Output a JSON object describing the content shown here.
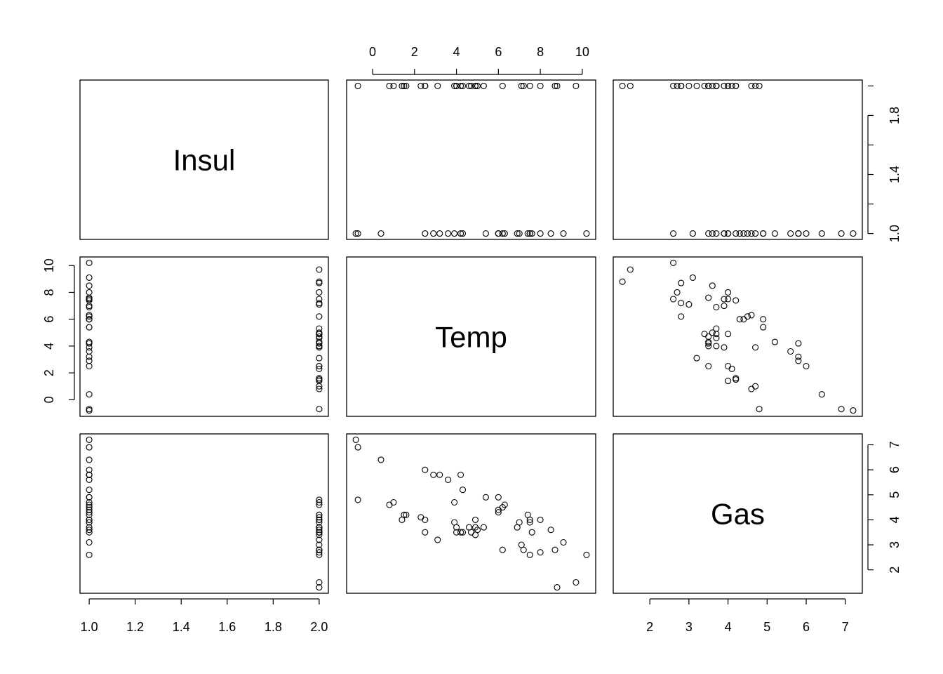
{
  "chart_data": {
    "type": "scatter-matrix",
    "variables": [
      "Insul",
      "Temp",
      "Gas"
    ],
    "ranges": {
      "Insul": [
        1.0,
        2.0
      ],
      "Temp": [
        -0.8,
        10.2
      ],
      "Gas": [
        1.3,
        7.2
      ]
    },
    "axis_ticks": {
      "Insul": [
        "1.0",
        "1.2",
        "1.4",
        "1.6",
        "1.8",
        "2.0"
      ],
      "Temp": [
        "0",
        "2",
        "4",
        "6",
        "8",
        "10"
      ],
      "Gas": [
        "2",
        "3",
        "4",
        "5",
        "6",
        "7"
      ]
    },
    "axis_ticks_right_insul": [
      "1.0",
      "1.4",
      "1.8"
    ],
    "grid": false,
    "point_style": "open-circle",
    "observations": [
      {
        "Insul": 1,
        "Temp": -0.8,
        "Gas": 7.2
      },
      {
        "Insul": 1,
        "Temp": -0.7,
        "Gas": 6.9
      },
      {
        "Insul": 1,
        "Temp": 0.4,
        "Gas": 6.4
      },
      {
        "Insul": 1,
        "Temp": 2.5,
        "Gas": 6.0
      },
      {
        "Insul": 1,
        "Temp": 2.9,
        "Gas": 5.8
      },
      {
        "Insul": 1,
        "Temp": 3.2,
        "Gas": 5.8
      },
      {
        "Insul": 1,
        "Temp": 3.6,
        "Gas": 5.6
      },
      {
        "Insul": 1,
        "Temp": 3.9,
        "Gas": 4.7
      },
      {
        "Insul": 1,
        "Temp": 4.2,
        "Gas": 5.8
      },
      {
        "Insul": 1,
        "Temp": 4.3,
        "Gas": 5.2
      },
      {
        "Insul": 1,
        "Temp": 5.4,
        "Gas": 4.9
      },
      {
        "Insul": 1,
        "Temp": 6.0,
        "Gas": 4.9
      },
      {
        "Insul": 1,
        "Temp": 6.0,
        "Gas": 4.3
      },
      {
        "Insul": 1,
        "Temp": 6.0,
        "Gas": 4.4
      },
      {
        "Insul": 1,
        "Temp": 6.2,
        "Gas": 4.5
      },
      {
        "Insul": 1,
        "Temp": 6.3,
        "Gas": 4.6
      },
      {
        "Insul": 1,
        "Temp": 6.9,
        "Gas": 3.7
      },
      {
        "Insul": 1,
        "Temp": 7.0,
        "Gas": 3.9
      },
      {
        "Insul": 1,
        "Temp": 7.4,
        "Gas": 4.2
      },
      {
        "Insul": 1,
        "Temp": 7.5,
        "Gas": 4.0
      },
      {
        "Insul": 1,
        "Temp": 7.5,
        "Gas": 3.9
      },
      {
        "Insul": 1,
        "Temp": 7.6,
        "Gas": 3.5
      },
      {
        "Insul": 1,
        "Temp": 8.0,
        "Gas": 4.0
      },
      {
        "Insul": 1,
        "Temp": 8.5,
        "Gas": 3.6
      },
      {
        "Insul": 1,
        "Temp": 9.1,
        "Gas": 3.1
      },
      {
        "Insul": 1,
        "Temp": 10.2,
        "Gas": 2.6
      },
      {
        "Insul": 2,
        "Temp": -0.7,
        "Gas": 4.8
      },
      {
        "Insul": 2,
        "Temp": 0.8,
        "Gas": 4.6
      },
      {
        "Insul": 2,
        "Temp": 1.0,
        "Gas": 4.7
      },
      {
        "Insul": 2,
        "Temp": 1.4,
        "Gas": 4.0
      },
      {
        "Insul": 2,
        "Temp": 1.5,
        "Gas": 4.2
      },
      {
        "Insul": 2,
        "Temp": 1.6,
        "Gas": 4.2
      },
      {
        "Insul": 2,
        "Temp": 2.3,
        "Gas": 4.1
      },
      {
        "Insul": 2,
        "Temp": 2.5,
        "Gas": 4.0
      },
      {
        "Insul": 2,
        "Temp": 2.5,
        "Gas": 3.5
      },
      {
        "Insul": 2,
        "Temp": 3.1,
        "Gas": 3.2
      },
      {
        "Insul": 2,
        "Temp": 3.9,
        "Gas": 3.9
      },
      {
        "Insul": 2,
        "Temp": 4.0,
        "Gas": 3.5
      },
      {
        "Insul": 2,
        "Temp": 4.0,
        "Gas": 3.7
      },
      {
        "Insul": 2,
        "Temp": 4.2,
        "Gas": 3.5
      },
      {
        "Insul": 2,
        "Temp": 4.3,
        "Gas": 3.5
      },
      {
        "Insul": 2,
        "Temp": 4.6,
        "Gas": 3.7
      },
      {
        "Insul": 2,
        "Temp": 4.7,
        "Gas": 3.5
      },
      {
        "Insul": 2,
        "Temp": 4.9,
        "Gas": 3.4
      },
      {
        "Insul": 2,
        "Temp": 4.9,
        "Gas": 3.7
      },
      {
        "Insul": 2,
        "Temp": 4.9,
        "Gas": 4.0
      },
      {
        "Insul": 2,
        "Temp": 5.0,
        "Gas": 3.6
      },
      {
        "Insul": 2,
        "Temp": 5.3,
        "Gas": 3.7
      },
      {
        "Insul": 2,
        "Temp": 6.2,
        "Gas": 2.8
      },
      {
        "Insul": 2,
        "Temp": 7.1,
        "Gas": 3.0
      },
      {
        "Insul": 2,
        "Temp": 7.2,
        "Gas": 2.8
      },
      {
        "Insul": 2,
        "Temp": 7.5,
        "Gas": 2.6
      },
      {
        "Insul": 2,
        "Temp": 8.0,
        "Gas": 2.7
      },
      {
        "Insul": 2,
        "Temp": 8.7,
        "Gas": 2.8
      },
      {
        "Insul": 2,
        "Temp": 8.8,
        "Gas": 1.3
      },
      {
        "Insul": 2,
        "Temp": 9.7,
        "Gas": 1.5
      }
    ]
  }
}
